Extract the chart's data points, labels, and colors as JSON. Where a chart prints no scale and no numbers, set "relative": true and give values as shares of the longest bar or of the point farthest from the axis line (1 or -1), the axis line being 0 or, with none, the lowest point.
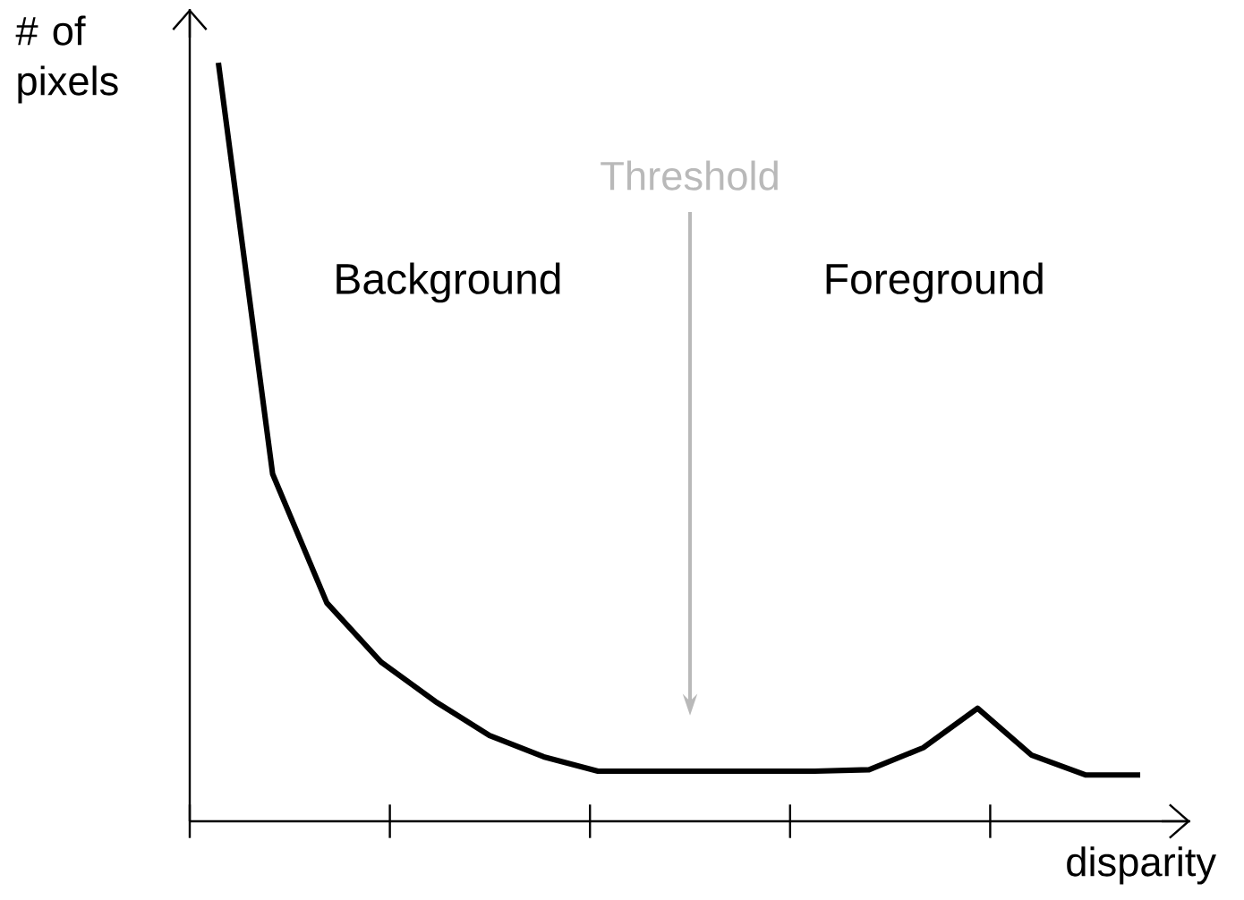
{
  "chart_data": {
    "type": "line",
    "relative": true,
    "xlabel": "disparity",
    "ylabel": "# of pixels",
    "color": "#000000",
    "marker": "none",
    "line_style": "solid",
    "categories": [
      null,
      null,
      null,
      null,
      null,
      null,
      null,
      null,
      null,
      null,
      null,
      null,
      null,
      null,
      null,
      null,
      null,
      null
    ],
    "values": [
      1,
      0.458,
      0.288,
      0.21,
      0.158,
      0.113,
      0.085,
      0.066,
      0.066,
      0.066,
      0.066,
      0.066,
      0.068,
      0.097,
      0.149,
      0.087,
      0.061,
      0.061
    ],
    "annotations": [
      "Background",
      "Foreground",
      "Threshold"
    ]
  }
}
